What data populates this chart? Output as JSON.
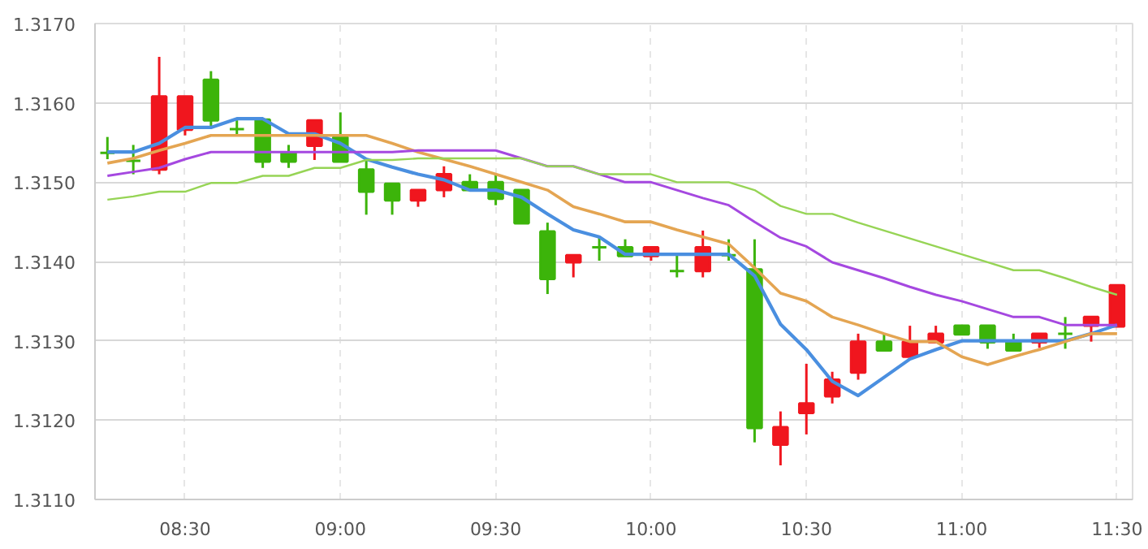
{
  "chart_data": {
    "type": "candlestick",
    "x": [
      8.25,
      8.3333,
      8.4167,
      8.5,
      8.5833,
      8.6667,
      8.75,
      8.8333,
      8.9167,
      9,
      9.0833,
      9.1667,
      9.25,
      9.3333,
      9.4167,
      9.5,
      9.5833,
      9.6667,
      9.75,
      9.8333,
      9.9167,
      10,
      10.0833,
      10.1667,
      10.25,
      10.3333,
      10.4167,
      10.5,
      10.5833,
      10.6667,
      10.75,
      10.8333,
      10.9167,
      11,
      11.0833,
      11.1667,
      11.25,
      11.3333,
      11.4167,
      11.5
    ],
    "ohlc": [
      [
        1.31537,
        1.31557,
        1.31529,
        1.31537
      ],
      [
        1.31527,
        1.31547,
        1.3151,
        1.31527
      ],
      [
        1.31516,
        1.31658,
        1.3151,
        1.31608
      ],
      [
        1.31566,
        1.31608,
        1.31559,
        1.31608
      ],
      [
        1.31629,
        1.3164,
        1.31569,
        1.31578
      ],
      [
        1.31567,
        1.31578,
        1.31559,
        1.31567
      ],
      [
        1.31579,
        1.31579,
        1.31518,
        1.31526
      ],
      [
        1.31537,
        1.31547,
        1.31518,
        1.31526
      ],
      [
        1.31546,
        1.31578,
        1.31528,
        1.31578
      ],
      [
        1.31557,
        1.31588,
        1.31526,
        1.31526
      ],
      [
        1.31516,
        1.31529,
        1.31459,
        1.31488
      ],
      [
        1.31498,
        1.31498,
        1.31459,
        1.31477
      ],
      [
        1.31477,
        1.3149,
        1.31469,
        1.3149
      ],
      [
        1.3149,
        1.3152,
        1.31481,
        1.3151
      ],
      [
        1.315,
        1.3151,
        1.3149,
        1.3149
      ],
      [
        1.315,
        1.3151,
        1.31471,
        1.31479
      ],
      [
        1.3149,
        1.3149,
        1.31448,
        1.31448
      ],
      [
        1.31438,
        1.31449,
        1.31359,
        1.31378
      ],
      [
        1.31399,
        1.31408,
        1.3138,
        1.31408
      ],
      [
        1.31418,
        1.31431,
        1.31401,
        1.31418
      ],
      [
        1.31418,
        1.31428,
        1.31407,
        1.31407
      ],
      [
        1.31407,
        1.31418,
        1.31401,
        1.31418
      ],
      [
        1.31388,
        1.31409,
        1.3138,
        1.31388
      ],
      [
        1.31388,
        1.31439,
        1.3138,
        1.31418
      ],
      [
        1.31408,
        1.31428,
        1.31401,
        1.31408
      ],
      [
        1.3139,
        1.31428,
        1.31172,
        1.3119
      ],
      [
        1.31169,
        1.31211,
        1.31143,
        1.31191
      ],
      [
        1.31209,
        1.31271,
        1.31182,
        1.31221
      ],
      [
        1.3123,
        1.31261,
        1.31221,
        1.31251
      ],
      [
        1.3126,
        1.31309,
        1.31251,
        1.31299
      ],
      [
        1.31299,
        1.31309,
        1.31288,
        1.31288
      ],
      [
        1.3128,
        1.31319,
        1.3128,
        1.31299
      ],
      [
        1.31298,
        1.31319,
        1.31298,
        1.31309
      ],
      [
        1.31319,
        1.31319,
        1.31308,
        1.31308
      ],
      [
        1.31319,
        1.31319,
        1.3129,
        1.31298
      ],
      [
        1.31299,
        1.31309,
        1.31288,
        1.31288
      ],
      [
        1.31298,
        1.31309,
        1.31291,
        1.31309
      ],
      [
        1.31309,
        1.3133,
        1.3129,
        1.31309
      ],
      [
        1.31319,
        1.3133,
        1.31299,
        1.3133
      ],
      [
        1.31318,
        1.3137,
        1.31318,
        1.3137
      ]
    ],
    "colors": [
      "#3cb40a",
      "#3cb40a",
      "#f0161e",
      "#f0161e",
      "#3cb40a",
      "#3cb40a",
      "#3cb40a",
      "#3cb40a",
      "#f0161e",
      "#3cb40a",
      "#3cb40a",
      "#3cb40a",
      "#f0161e",
      "#f0161e",
      "#3cb40a",
      "#3cb40a",
      "#3cb40a",
      "#3cb40a",
      "#f0161e",
      "#3cb40a",
      "#3cb40a",
      "#f0161e",
      "#3cb40a",
      "#f0161e",
      "#3cb40a",
      "#3cb40a",
      "#f0161e",
      "#f0161e",
      "#f0161e",
      "#f0161e",
      "#3cb40a",
      "#f0161e",
      "#f0161e",
      "#3cb40a",
      "#3cb40a",
      "#3cb40a",
      "#f0161e",
      "#3cb40a",
      "#f0161e",
      "#f0161e"
    ],
    "series": [
      {
        "type": "line",
        "color": "#4a8fe0",
        "values": [
          1.31538,
          1.31538,
          1.31549,
          1.31569,
          1.31569,
          1.3158,
          1.3158,
          1.31561,
          1.31561,
          1.31549,
          1.31529,
          1.31519,
          1.3151,
          1.31503,
          1.3149,
          1.3149,
          1.31481,
          1.3146,
          1.3144,
          1.31431,
          1.31409,
          1.31409,
          1.31409,
          1.31409,
          1.31409,
          1.31382,
          1.31321,
          1.31289,
          1.31249,
          1.31231,
          1.31254,
          1.31277,
          1.31289,
          1.313,
          1.313,
          1.313,
          1.313,
          1.313,
          1.31309,
          1.3132
        ]
      },
      {
        "type": "line",
        "color": "#e4a552",
        "values": [
          1.31524,
          1.3153,
          1.3154,
          1.31549,
          1.31559,
          1.31559,
          1.31559,
          1.31559,
          1.31559,
          1.31559,
          1.31559,
          1.31549,
          1.31538,
          1.31529,
          1.3152,
          1.3151,
          1.315,
          1.3149,
          1.31469,
          1.3146,
          1.3145,
          1.3145,
          1.3144,
          1.31431,
          1.31422,
          1.31392,
          1.3136,
          1.3135,
          1.3133,
          1.3132,
          1.31309,
          1.31299,
          1.31299,
          1.3128,
          1.3127,
          1.3128,
          1.31289,
          1.31299,
          1.31309,
          1.31309
        ]
      },
      {
        "type": "line",
        "color": "#a548e0",
        "values": [
          1.31508,
          1.31513,
          1.31518,
          1.31529,
          1.31538,
          1.31538,
          1.31538,
          1.31538,
          1.31538,
          1.31538,
          1.31538,
          1.31538,
          1.3154,
          1.3154,
          1.3154,
          1.3154,
          1.3153,
          1.3152,
          1.3152,
          1.3151,
          1.315,
          1.315,
          1.3149,
          1.3148,
          1.31471,
          1.3145,
          1.3143,
          1.31419,
          1.31399,
          1.31389,
          1.31379,
          1.31368,
          1.31358,
          1.3135,
          1.3134,
          1.3133,
          1.3133,
          1.3132,
          1.3132,
          1.3132
        ]
      },
      {
        "type": "line",
        "color": "#96d455",
        "values": [
          1.31478,
          1.31482,
          1.31488,
          1.31488,
          1.31499,
          1.31499,
          1.31508,
          1.31508,
          1.31518,
          1.31518,
          1.31528,
          1.31528,
          1.3153,
          1.3153,
          1.3153,
          1.3153,
          1.3153,
          1.3152,
          1.3152,
          1.3151,
          1.3151,
          1.3151,
          1.315,
          1.315,
          1.315,
          1.3149,
          1.3147,
          1.3146,
          1.3146,
          1.31449,
          1.31439,
          1.31429,
          1.31419,
          1.31409,
          1.31399,
          1.31389,
          1.31389,
          1.31379,
          1.31368,
          1.31358
        ]
      }
    ],
    "xlim": [
      8.21,
      11.55
    ],
    "xticks": [
      {
        "value": 8.5,
        "label": "08:30"
      },
      {
        "value": 9,
        "label": "09:00"
      },
      {
        "value": 9.5,
        "label": "09:30"
      },
      {
        "value": 10,
        "label": "10:00"
      },
      {
        "value": 10.5,
        "label": "10:30"
      },
      {
        "value": 11,
        "label": "11:00"
      },
      {
        "value": 11.5,
        "label": "11:30"
      }
    ],
    "ylim": [
      1.311,
      1.317
    ],
    "yticks": [
      {
        "value": 1.311,
        "label": "1.3110"
      },
      {
        "value": 1.312,
        "label": "1.3120"
      },
      {
        "value": 1.313,
        "label": "1.3130"
      },
      {
        "value": 1.314,
        "label": "1.3140"
      },
      {
        "value": 1.315,
        "label": "1.3150"
      },
      {
        "value": 1.316,
        "label": "1.3160"
      },
      {
        "value": 1.317,
        "label": "1.3170"
      }
    ],
    "grid": true
  }
}
